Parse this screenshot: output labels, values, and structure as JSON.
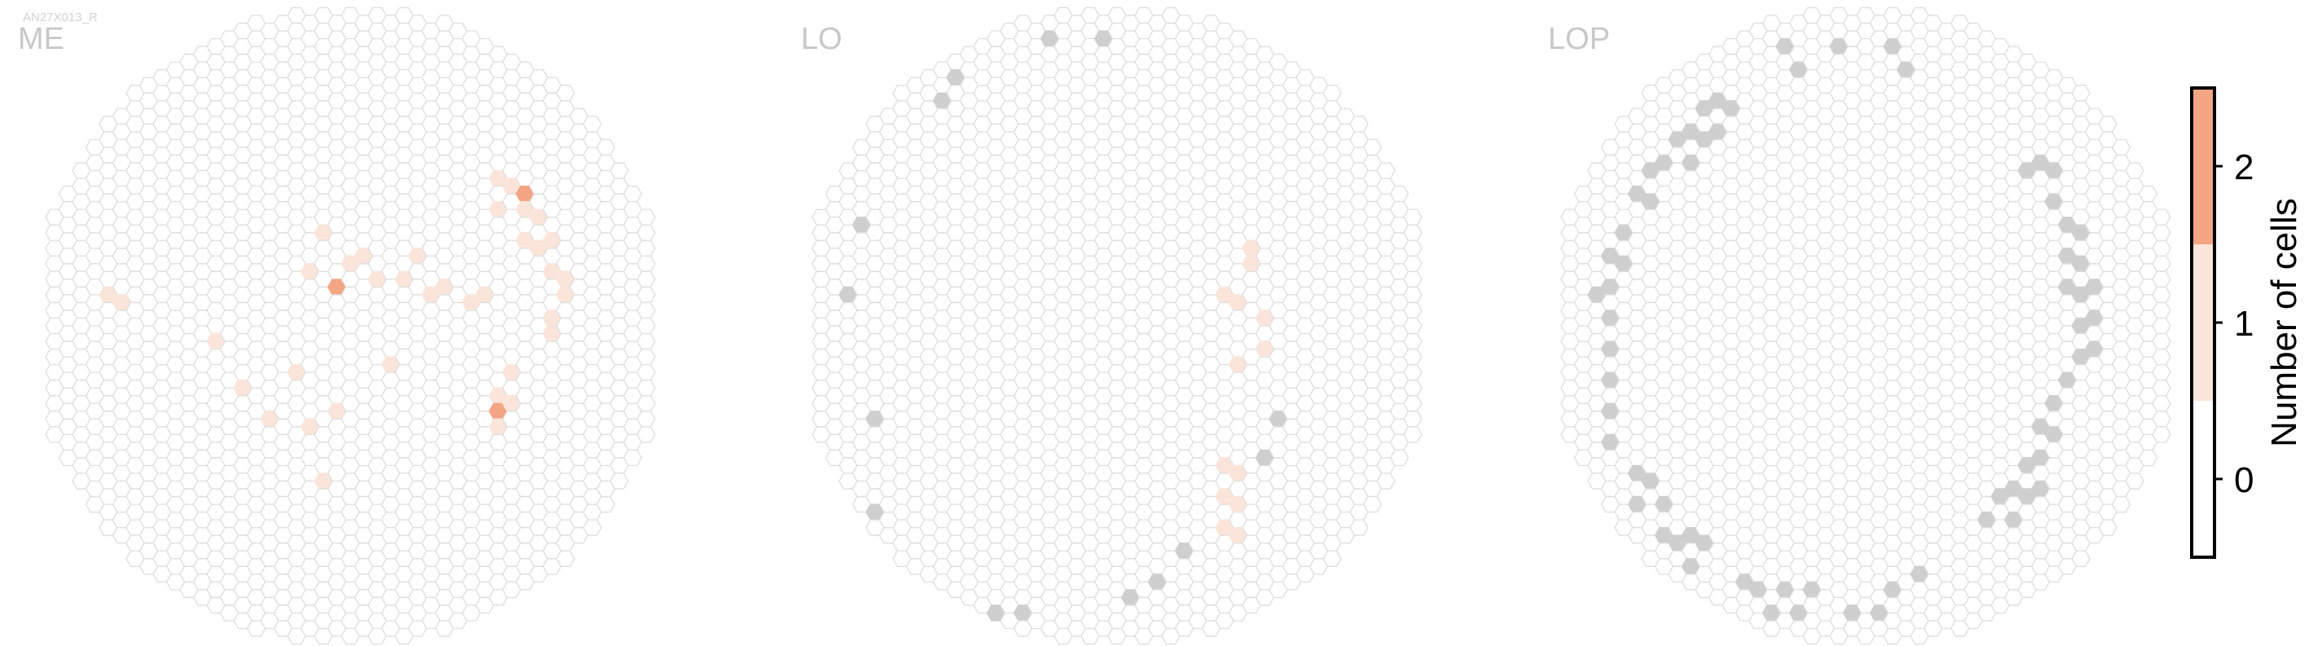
{
  "figure": {
    "cell_id": "AN27X013_R"
  },
  "colors": {
    "empty_fill": "#ffffff",
    "empty_stroke": "#dedede",
    "level_1": "#fbe5da",
    "level_2": "#f4a583",
    "outside_region": "#cfcfcf"
  },
  "chart_data": [
    {
      "type": "heatmap",
      "title": "ME",
      "grid": "hexagonal columns",
      "cells_count_1": [
        [
          -18,
          -2
        ],
        [
          -17,
          -2
        ],
        [
          -10,
          1
        ],
        [
          -8,
          4
        ],
        [
          -6,
          6
        ],
        [
          -3,
          -4
        ],
        [
          -2,
          -6
        ],
        [
          -4,
          3
        ],
        [
          -3,
          6
        ],
        [
          -2,
          10
        ],
        [
          -1,
          5
        ],
        [
          0,
          -4
        ],
        [
          1,
          -5
        ],
        [
          2,
          -3
        ],
        [
          3,
          2
        ],
        [
          4,
          -3
        ],
        [
          5,
          -5
        ],
        [
          6,
          -2
        ],
        [
          7,
          -3
        ],
        [
          9,
          -2
        ],
        [
          10,
          -2
        ],
        [
          11,
          4
        ],
        [
          11,
          6
        ],
        [
          12,
          3
        ],
        [
          12,
          5
        ],
        [
          11,
          -8
        ],
        [
          11,
          -10
        ],
        [
          12,
          -9
        ],
        [
          13,
          -8
        ],
        [
          13,
          -6
        ],
        [
          14,
          -7
        ],
        [
          14,
          -5
        ],
        [
          15,
          -6
        ],
        [
          15,
          -4
        ],
        [
          16,
          -3
        ],
        [
          16,
          -2
        ],
        [
          15,
          -1
        ],
        [
          15,
          0
        ]
      ],
      "cells_count_2": [
        [
          -1,
          -3
        ],
        [
          13,
          -9
        ],
        [
          11,
          5
        ]
      ],
      "cells_outside": [],
      "colorbar": {
        "label": "Number of cells",
        "ticks": [
          0,
          1,
          2
        ],
        "range": [
          -0.5,
          2.5
        ]
      }
    },
    {
      "type": "heatmap",
      "title": "LO",
      "grid": "hexagonal columns",
      "cells_count_1": [
        [
          10,
          -5
        ],
        [
          10,
          -4
        ],
        [
          9,
          -2
        ],
        [
          8,
          -2
        ],
        [
          9,
          2
        ],
        [
          11,
          -1
        ],
        [
          9,
          13
        ],
        [
          8,
          13
        ],
        [
          8,
          11
        ],
        [
          9,
          11
        ],
        [
          9,
          9
        ],
        [
          8,
          9
        ],
        [
          11,
          1
        ]
      ],
      "cells_count_2": [],
      "cells_outside": [
        [
          -20,
          -2
        ],
        [
          -18,
          6
        ],
        [
          -18,
          12
        ],
        [
          -19,
          -7
        ],
        [
          -15,
          18
        ],
        [
          -13,
          18
        ],
        [
          -11,
          18
        ],
        [
          -9,
          18
        ],
        [
          -7,
          18
        ],
        [
          1,
          17
        ],
        [
          3,
          16
        ],
        [
          5,
          14
        ],
        [
          11,
          8
        ],
        [
          12,
          6
        ],
        [
          -5,
          -19
        ],
        [
          -1,
          -19
        ],
        [
          -13,
          -15
        ],
        [
          -12,
          -16
        ]
      ],
      "colorbar": {
        "label": "Number of cells",
        "ticks": [
          0,
          1,
          2
        ],
        "range": [
          -0.5,
          2.5
        ]
      }
    },
    {
      "type": "heatmap",
      "title": "LOP",
      "grid": "hexagonal columns",
      "cells_count_1": [],
      "cells_count_2": [],
      "cells_outside": [
        [
          -20,
          -2
        ],
        [
          -19,
          -5
        ],
        [
          -19,
          -3
        ],
        [
          -19,
          -1
        ],
        [
          -19,
          1
        ],
        [
          -19,
          3
        ],
        [
          -19,
          5
        ],
        [
          -19,
          7
        ],
        [
          -18,
          -6
        ],
        [
          -18,
          -4
        ],
        [
          -17,
          -9
        ],
        [
          -17,
          9
        ],
        [
          -17,
          11
        ],
        [
          -16,
          -10
        ],
        [
          -16,
          -8
        ],
        [
          -16,
          10
        ],
        [
          -15,
          -11
        ],
        [
          -15,
          11
        ],
        [
          -15,
          13
        ],
        [
          -14,
          -12
        ],
        [
          -14,
          14
        ],
        [
          -13,
          -13
        ],
        [
          -13,
          -11
        ],
        [
          -13,
          13
        ],
        [
          -13,
          15
        ],
        [
          -12,
          -14
        ],
        [
          -12,
          -12
        ],
        [
          -12,
          14
        ],
        [
          -11,
          -15
        ],
        [
          -11,
          -13
        ],
        [
          -10,
          -14
        ],
        [
          -9,
          16
        ],
        [
          -8,
          17
        ],
        [
          -7,
          18
        ],
        [
          -6,
          17
        ],
        [
          -6,
          -18
        ],
        [
          -5,
          18
        ],
        [
          -5,
          -17
        ],
        [
          -4,
          17
        ],
        [
          -2,
          -18
        ],
        [
          -1,
          18
        ],
        [
          1,
          18
        ],
        [
          2,
          -18
        ],
        [
          2,
          17
        ],
        [
          3,
          -17
        ],
        [
          4,
          16
        ],
        [
          9,
          12
        ],
        [
          10,
          11
        ],
        [
          11,
          10
        ],
        [
          11,
          12
        ],
        [
          12,
          9
        ],
        [
          12,
          11
        ],
        [
          13,
          10
        ],
        [
          13,
          8
        ],
        [
          13,
          6
        ],
        [
          14,
          7
        ],
        [
          14,
          5
        ],
        [
          15,
          -5
        ],
        [
          15,
          -3
        ],
        [
          15,
          3
        ],
        [
          16,
          -2
        ],
        [
          16,
          0
        ],
        [
          16,
          2
        ],
        [
          17,
          -3
        ],
        [
          17,
          -1
        ],
        [
          17,
          1
        ],
        [
          12,
          -10
        ],
        [
          13,
          -11
        ],
        [
          14,
          -10
        ],
        [
          14,
          -8
        ],
        [
          16,
          -6
        ],
        [
          16,
          -4
        ],
        [
          15,
          -7
        ]
      ],
      "colorbar": {
        "label": "Number of cells",
        "ticks": [
          0,
          1,
          2
        ],
        "range": [
          -0.5,
          2.5
        ]
      }
    }
  ]
}
